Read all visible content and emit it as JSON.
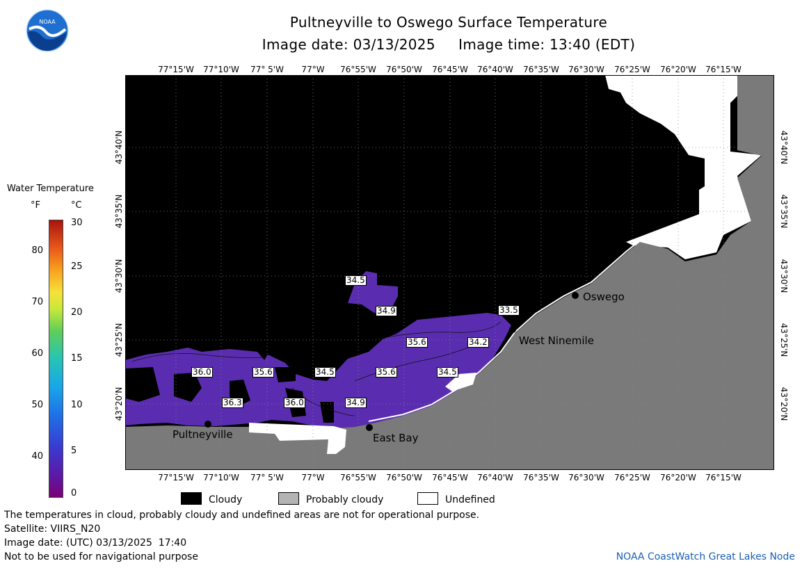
{
  "header": {
    "title": "Pultneyville to Oswego Surface Temperature",
    "subtitle": "Image date: 03/13/2025     Image time: 13:40 (EDT)"
  },
  "logo": {
    "text": "NOAA",
    "icon": "noaa-logo-icon"
  },
  "axes": {
    "longitudes": [
      "77°15'W",
      "77°10'W",
      "77° 5'W",
      "77°W",
      "76°55'W",
      "76°50'W",
      "76°45'W",
      "76°40'W",
      "76°35'W",
      "76°30'W",
      "76°25'W",
      "76°20'W",
      "76°15'W"
    ],
    "latitudes": [
      "43°40'N",
      "43°35'N",
      "43°30'N",
      "43°25'N",
      "43°20'N"
    ]
  },
  "colorbar": {
    "title": "Water Temperature",
    "unit_f": "°F",
    "unit_c": "°C",
    "ticks_f": [
      "80",
      "70",
      "60",
      "50",
      "40"
    ],
    "ticks_c": [
      "30",
      "25",
      "20",
      "15",
      "10",
      "5",
      "0"
    ],
    "colors": {
      "low": "#7a0078",
      "mid": "#5fce5a",
      "high": "#a8140e"
    }
  },
  "cities": [
    {
      "name": "Oswego"
    },
    {
      "name": "West Ninemile"
    },
    {
      "name": "Pultneyville"
    },
    {
      "name": "East Bay"
    }
  ],
  "temperature_labels": [
    "34.5",
    "34.9",
    "33.5",
    "35.6",
    "34.2",
    "36.0",
    "35.6",
    "34.5",
    "35.6",
    "34.5",
    "36.3",
    "36.0",
    "34.9"
  ],
  "legend": {
    "cloudy": "Cloudy",
    "probably_cloudy": "Probably cloudy",
    "undefined": "Undefined",
    "colors": {
      "cloudy": "#000000",
      "probably_cloudy": "#b4b4b4",
      "undefined": "#ffffff",
      "land": "#7a7a7a",
      "water": "#5a2db0"
    }
  },
  "footer": {
    "note": "The temperatures in cloud, probably cloudy and undefined areas are not for operational purpose.",
    "satellite": "Satellite: VIIRS_N20",
    "utc_date": "Image date: (UTC) 03/13/2025  17:40",
    "disclaimer": "Not to be used for navigational purpose",
    "credit": "NOAA CoastWatch Great Lakes Node"
  }
}
